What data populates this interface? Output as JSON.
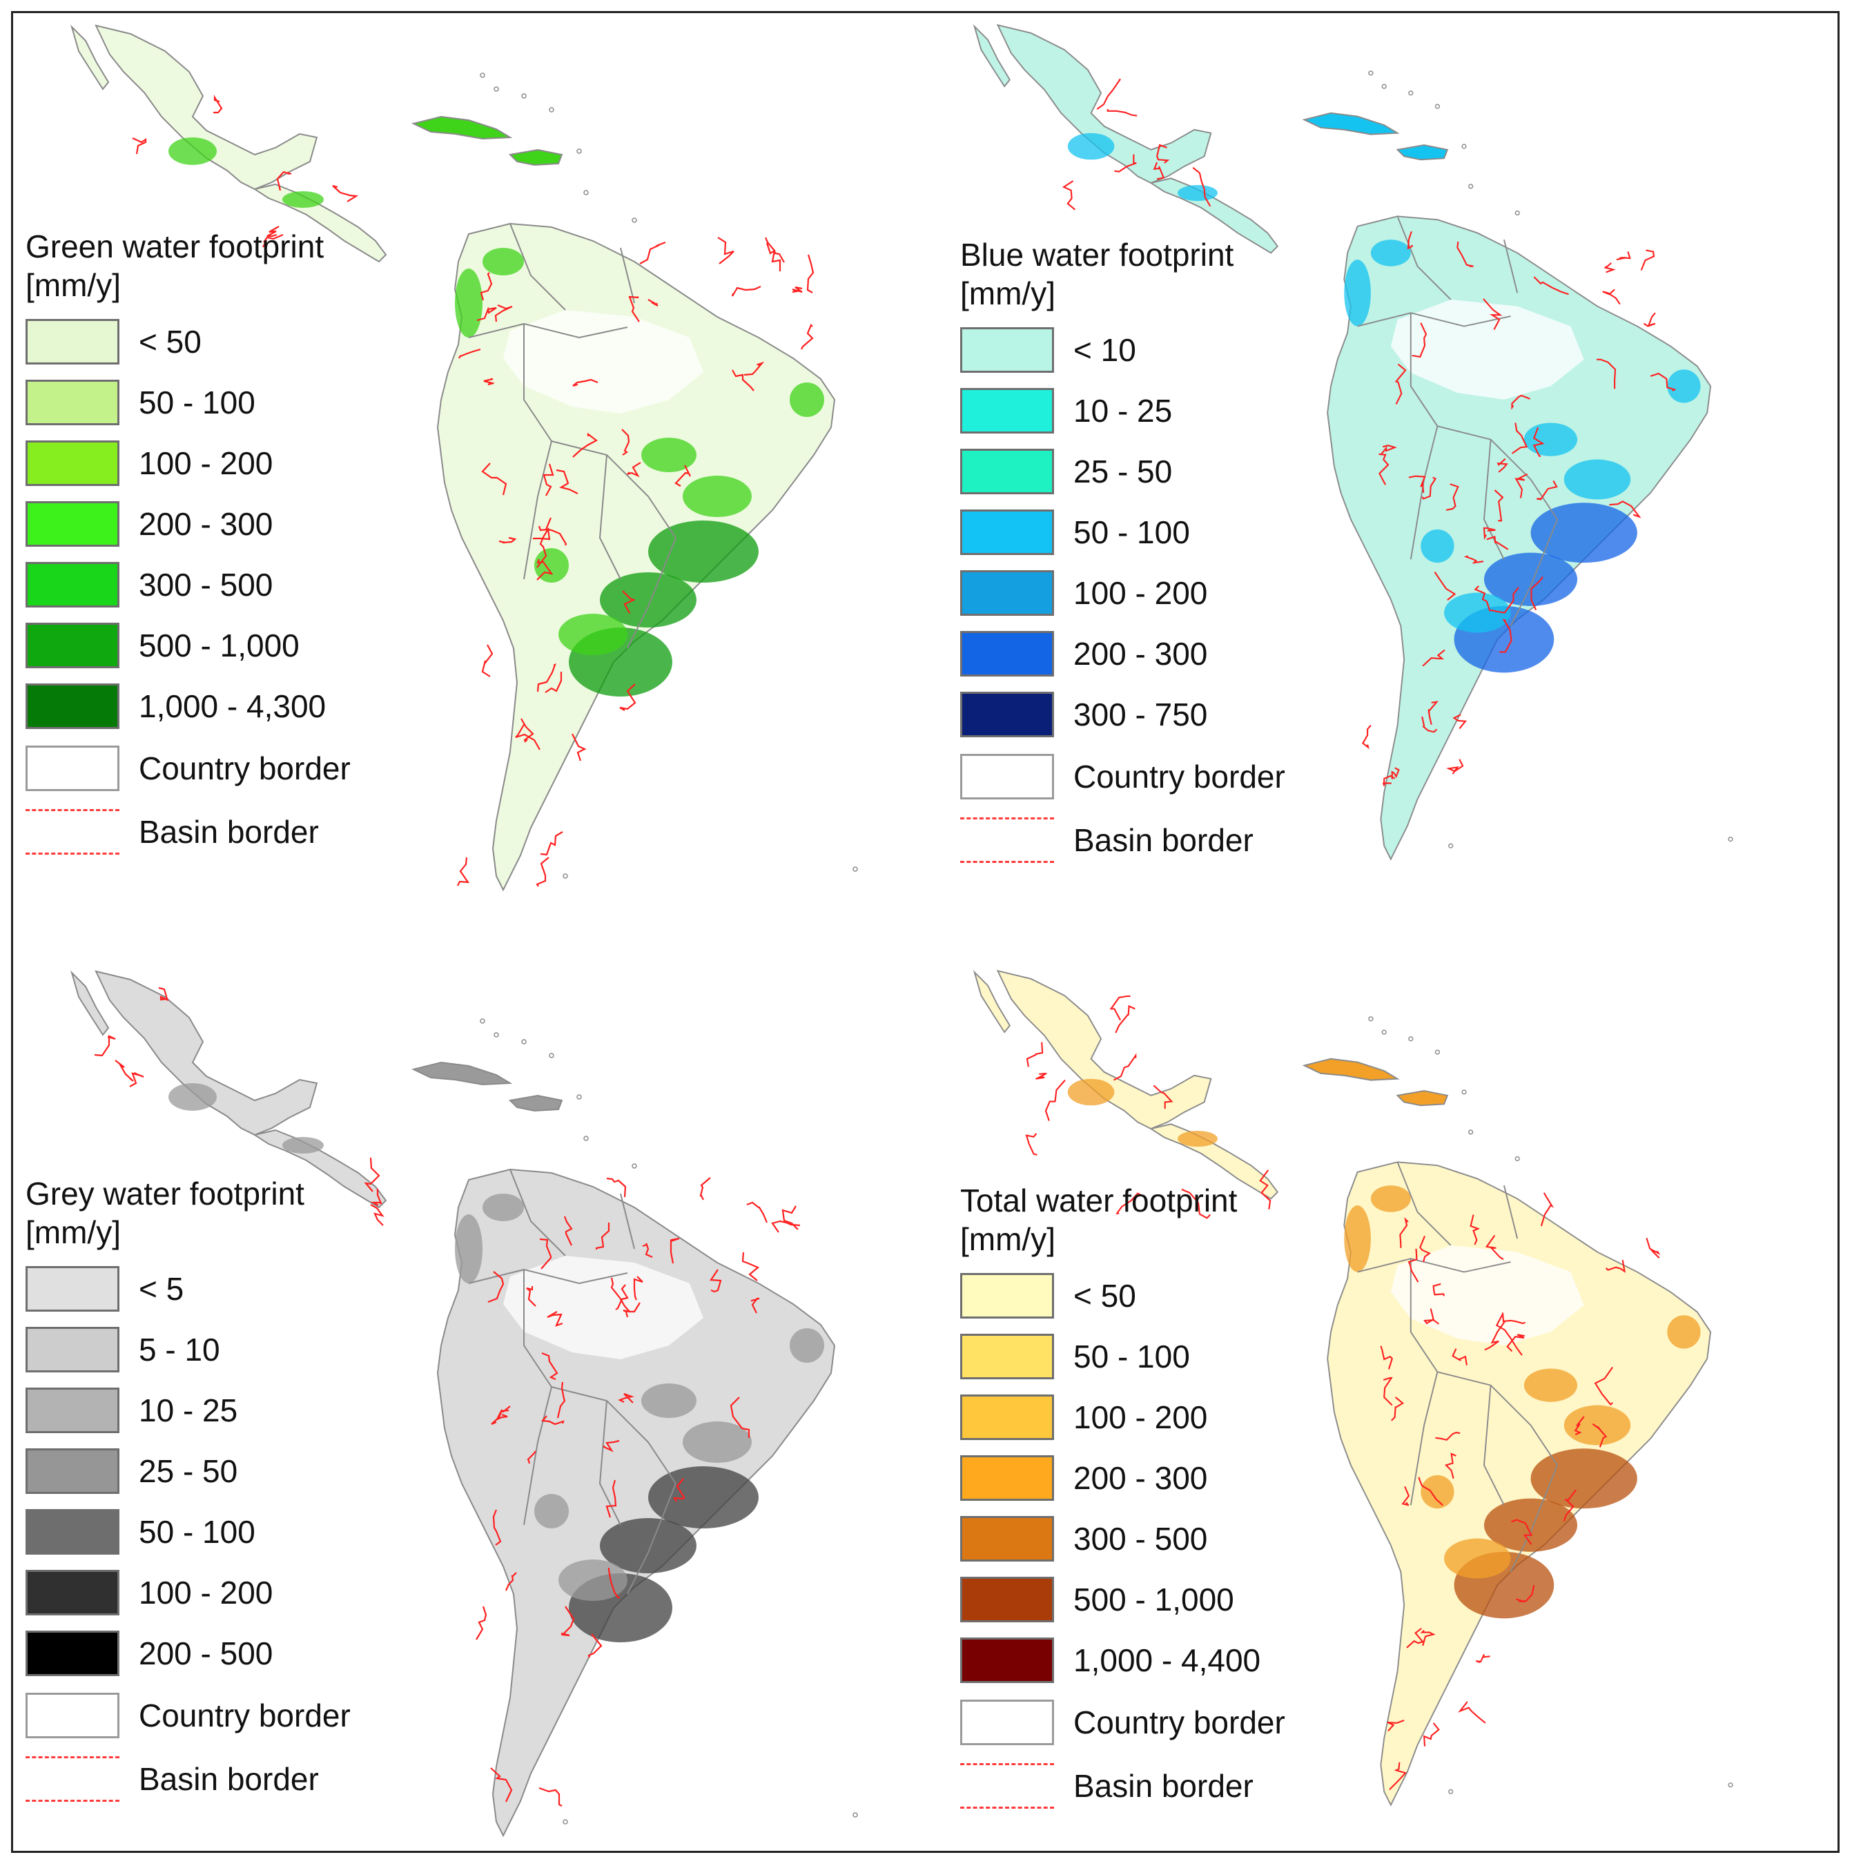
{
  "figure": {
    "panels": [
      {
        "id": "green",
        "title": "Green water footprint",
        "unit": "[mm/y]",
        "classes": [
          {
            "label": "< 50",
            "color": "#e6f8d2"
          },
          {
            "label": "50 - 100",
            "color": "#c3f28a"
          },
          {
            "label": "100 - 200",
            "color": "#86ee1e"
          },
          {
            "label": "200 - 300",
            "color": "#3df21a"
          },
          {
            "label": "300 - 500",
            "color": "#1ad61a"
          },
          {
            "label": "500 - 1,000",
            "color": "#0fa80f"
          },
          {
            "label": "1,000 - 4,300",
            "color": "#067a06"
          }
        ],
        "country_label": "Country border",
        "basin_label": "Basin border",
        "land_color": "#eefae0",
        "hot_color": "#3fd31a",
        "hot_color2": "#0e9c0e"
      },
      {
        "id": "blue",
        "title": "Blue water footprint",
        "unit": "[mm/y]",
        "classes": [
          {
            "label": "< 10",
            "color": "#b8f5e6"
          },
          {
            "label": "10 - 25",
            "color": "#1ff0dc"
          },
          {
            "label": "25 - 50",
            "color": "#1ff2c2"
          },
          {
            "label": "50 - 100",
            "color": "#14c3f5"
          },
          {
            "label": "100 - 200",
            "color": "#14a0e0"
          },
          {
            "label": "200 - 300",
            "color": "#1464e6"
          },
          {
            "label": "300 - 750",
            "color": "#0a2078"
          }
        ],
        "country_label": "Country border",
        "basin_label": "Basin border",
        "land_color": "#bff3e6",
        "hot_color": "#14c3f0",
        "hot_color2": "#1464e6"
      },
      {
        "id": "grey",
        "title": "Grey water footprint",
        "unit": "[mm/y]",
        "classes": [
          {
            "label": "< 5",
            "color": "#e0e0e0"
          },
          {
            "label": "5 - 10",
            "color": "#cdcdcd"
          },
          {
            "label": "10 - 25",
            "color": "#b3b3b3"
          },
          {
            "label": "25 - 50",
            "color": "#969696"
          },
          {
            "label": "50 - 100",
            "color": "#6e6e6e"
          },
          {
            "label": "100 - 200",
            "color": "#303030"
          },
          {
            "label": "200 - 500",
            "color": "#000000"
          }
        ],
        "country_label": "Country border",
        "basin_label": "Basin border",
        "land_color": "#dcdcdc",
        "hot_color": "#9a9a9a",
        "hot_color2": "#404040"
      },
      {
        "id": "total",
        "title": "Total water footprint",
        "unit": "[mm/y]",
        "classes": [
          {
            "label": "< 50",
            "color": "#fffbbe"
          },
          {
            "label": "50 - 100",
            "color": "#ffe164"
          },
          {
            "label": "100 - 200",
            "color": "#ffc83c"
          },
          {
            "label": "200 - 300",
            "color": "#ffaa1e"
          },
          {
            "label": "300 - 500",
            "color": "#dc7814"
          },
          {
            "label": "500 - 1,000",
            "color": "#aa3c0a"
          },
          {
            "label": "1,000 - 4,400",
            "color": "#780000"
          }
        ],
        "country_label": "Country border",
        "basin_label": "Basin border",
        "land_color": "#fff7c8",
        "hot_color": "#f2a028",
        "hot_color2": "#b8500e"
      }
    ],
    "styles": {
      "river_color": "#ff2020",
      "border_color": "#8a8a8a",
      "frame_color": "#222222"
    }
  }
}
